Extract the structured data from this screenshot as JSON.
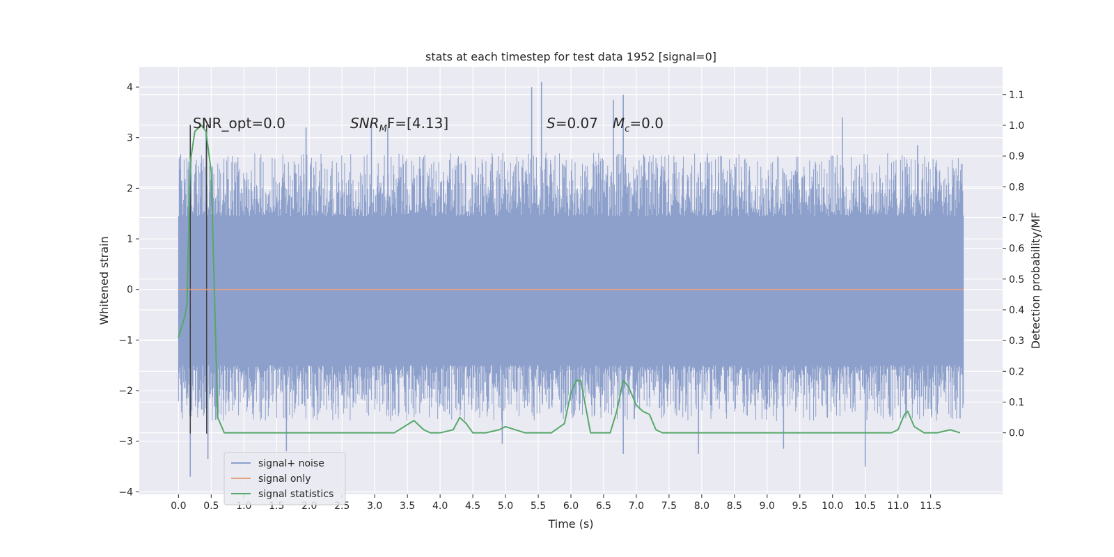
{
  "chart_data": {
    "type": "line",
    "title": "stats at each timestep for test data 1952 [signal=0]",
    "xlabel": "Time (s)",
    "ylabel": "Whitened strain",
    "ylabel_right": "Detection probability/MF",
    "xlim": [
      -0.6,
      12.6
    ],
    "ylim": [
      -4.05,
      4.4
    ],
    "ylim_right": [
      -0.2,
      1.19
    ],
    "x_ticks": [
      "0.0",
      "0.5",
      "1.0",
      "1.5",
      "2.0",
      "2.5",
      "3.0",
      "3.5",
      "4.0",
      "4.5",
      "5.0",
      "5.5",
      "6.0",
      "6.5",
      "7.0",
      "7.5",
      "8.0",
      "8.5",
      "9.0",
      "9.5",
      "10.0",
      "10.5",
      "11.0",
      "11.5"
    ],
    "y_ticks": [
      "4",
      "3",
      "2",
      "1",
      "0",
      "−1",
      "−2",
      "−3",
      "−4"
    ],
    "y_ticks_right": [
      "1.1",
      "1.0",
      "0.9",
      "0.8",
      "0.7",
      "0.6",
      "0.5",
      "0.4",
      "0.3",
      "0.2",
      "0.1",
      "0.0"
    ],
    "grid": true,
    "legend_position": "lower-left",
    "annotations": {
      "snr_opt": "SNR_opt=0.0",
      "snr_mf_sym": "SNR",
      "snr_mf_sub": "M",
      "snr_mf_rest": "F=[4.13]",
      "s_sym": "S",
      "s_rest": "=0.07",
      "mc_sym": "M",
      "mc_sub": "c",
      "mc_rest": "=0.0"
    },
    "vertical_lines_x": [
      0.18,
      0.43
    ],
    "series": [
      {
        "name": "signal+ noise",
        "color": "#8da0cb",
        "band": {
          "t_start": 0.0,
          "t_end": 12.0,
          "typical_low": -1.5,
          "typical_high": 1.45,
          "spike_envelope_high": 2.7,
          "spike_envelope_low": -2.6
        },
        "peaks_high": [
          {
            "x": 0.05,
            "y": 2.15
          },
          {
            "x": 0.18,
            "y": 3.2
          },
          {
            "x": 0.42,
            "y": 3.1
          },
          {
            "x": 1.95,
            "y": 3.2
          },
          {
            "x": 2.95,
            "y": 3.25
          },
          {
            "x": 3.2,
            "y": 3.2
          },
          {
            "x": 5.4,
            "y": 4.0
          },
          {
            "x": 5.55,
            "y": 4.1
          },
          {
            "x": 6.65,
            "y": 3.75
          },
          {
            "x": 6.8,
            "y": 3.85
          },
          {
            "x": 10.15,
            "y": 3.4
          },
          {
            "x": 11.3,
            "y": 2.85
          }
        ],
        "peaks_low": [
          {
            "x": 0.05,
            "y": -2.2
          },
          {
            "x": 0.18,
            "y": -3.7
          },
          {
            "x": 0.45,
            "y": -3.35
          },
          {
            "x": 1.65,
            "y": -3.2
          },
          {
            "x": 4.95,
            "y": -3.05
          },
          {
            "x": 6.8,
            "y": -3.25
          },
          {
            "x": 7.95,
            "y": -3.25
          },
          {
            "x": 9.25,
            "y": -3.15
          },
          {
            "x": 10.5,
            "y": -3.5
          },
          {
            "x": 11.95,
            "y": -2.55
          }
        ]
      },
      {
        "name": "signal only",
        "color": "#e5a07f",
        "x": [
          0.0,
          12.0
        ],
        "y": [
          0.0,
          0.0
        ]
      },
      {
        "name": "signal statistics",
        "color": "#55a868",
        "axis": "right",
        "x": [
          0.0,
          0.1,
          0.13,
          0.18,
          0.25,
          0.35,
          0.42,
          0.5,
          0.6,
          0.7,
          1.0,
          1.5,
          2.0,
          2.5,
          3.0,
          3.3,
          3.45,
          3.6,
          3.75,
          3.85,
          4.0,
          4.2,
          4.3,
          4.4,
          4.5,
          4.7,
          4.9,
          5.0,
          5.3,
          5.5,
          5.7,
          5.9,
          6.0,
          6.08,
          6.15,
          6.3,
          6.45,
          6.6,
          6.7,
          6.8,
          6.88,
          7.0,
          7.1,
          7.2,
          7.3,
          7.4,
          7.6,
          8.0,
          8.5,
          9.0,
          10.0,
          10.5,
          10.9,
          11.0,
          11.1,
          11.15,
          11.25,
          11.4,
          11.6,
          11.8,
          11.95
        ],
        "y": [
          0.31,
          0.38,
          0.42,
          0.88,
          0.98,
          1.0,
          0.98,
          0.85,
          0.05,
          0.0,
          0.0,
          0.0,
          0.0,
          0.0,
          0.0,
          0.0,
          0.02,
          0.04,
          0.01,
          0.0,
          0.0,
          0.01,
          0.05,
          0.03,
          0.0,
          0.0,
          0.01,
          0.02,
          0.0,
          0.0,
          0.0,
          0.03,
          0.13,
          0.17,
          0.17,
          0.0,
          0.0,
          0.0,
          0.07,
          0.17,
          0.15,
          0.09,
          0.07,
          0.06,
          0.01,
          0.0,
          0.0,
          0.0,
          0.0,
          0.0,
          0.0,
          0.0,
          0.0,
          0.01,
          0.06,
          0.07,
          0.02,
          0.0,
          0.0,
          0.01,
          0.0
        ]
      }
    ]
  }
}
